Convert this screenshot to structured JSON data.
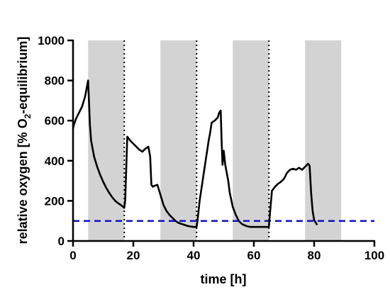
{
  "chart_data": {
    "type": "line",
    "xlabel": "time [h]",
    "ylabel_prefix": "relative oxygen [% O",
    "ylabel_sub": "2",
    "ylabel_suffix": "-equilibrium]",
    "xlim": [
      0,
      100
    ],
    "ylim": [
      0,
      1000
    ],
    "x_ticks": [
      0,
      20,
      40,
      60,
      80,
      100
    ],
    "y_ticks": [
      0,
      200,
      400,
      600,
      800,
      1000
    ],
    "grid": false,
    "shaded_intervals": [
      [
        5,
        17
      ],
      [
        29,
        41
      ],
      [
        53,
        65
      ],
      [
        77,
        89
      ]
    ],
    "shade_color": "#d3d3d3",
    "dotted_vlines": [
      17,
      41,
      65
    ],
    "reference_line": {
      "y": 100,
      "color": "#1010c8",
      "style": "dashed"
    },
    "series": [
      {
        "color": "#000000",
        "x": [
          0,
          0.3,
          1,
          2,
          3,
          4,
          4.5,
          5,
          5.3,
          5.6,
          6,
          7,
          8,
          9,
          10,
          11,
          12,
          13,
          14,
          15,
          16,
          17,
          17.3,
          18,
          19,
          20,
          21,
          22,
          23,
          24,
          25,
          25.6,
          26,
          26.5,
          27,
          28,
          29,
          30,
          31,
          32,
          33,
          34,
          35,
          36,
          37,
          38,
          39,
          40,
          41,
          41.3,
          42,
          43,
          44,
          45,
          45.5,
          46,
          47,
          48,
          48.5,
          49,
          49.3,
          49.6,
          50,
          50.5,
          51,
          51.5,
          52,
          53,
          54,
          55,
          56,
          57,
          58,
          59,
          60,
          61,
          62,
          63,
          64,
          65,
          65.3,
          66,
          67,
          68,
          69,
          70,
          71,
          72,
          73,
          74,
          75,
          76,
          77,
          78,
          78.5,
          79,
          79.5,
          80,
          81
        ],
        "y": [
          560,
          580,
          610,
          640,
          670,
          720,
          760,
          800,
          690,
          580,
          500,
          420,
          370,
          330,
          295,
          265,
          240,
          218,
          200,
          188,
          178,
          165,
          200,
          520,
          500,
          485,
          470,
          455,
          445,
          460,
          470,
          420,
          280,
          270,
          275,
          280,
          230,
          180,
          150,
          130,
          115,
          100,
          90,
          85,
          80,
          75,
          72,
          70,
          70,
          100,
          200,
          300,
          400,
          500,
          540,
          590,
          600,
          615,
          640,
          650,
          500,
          380,
          450,
          380,
          340,
          300,
          240,
          170,
          130,
          100,
          85,
          78,
          72,
          70,
          70,
          70,
          70,
          70,
          70,
          70,
          130,
          250,
          270,
          285,
          295,
          310,
          340,
          355,
          360,
          355,
          365,
          355,
          370,
          385,
          375,
          240,
          150,
          105,
          80
        ]
      }
    ]
  }
}
